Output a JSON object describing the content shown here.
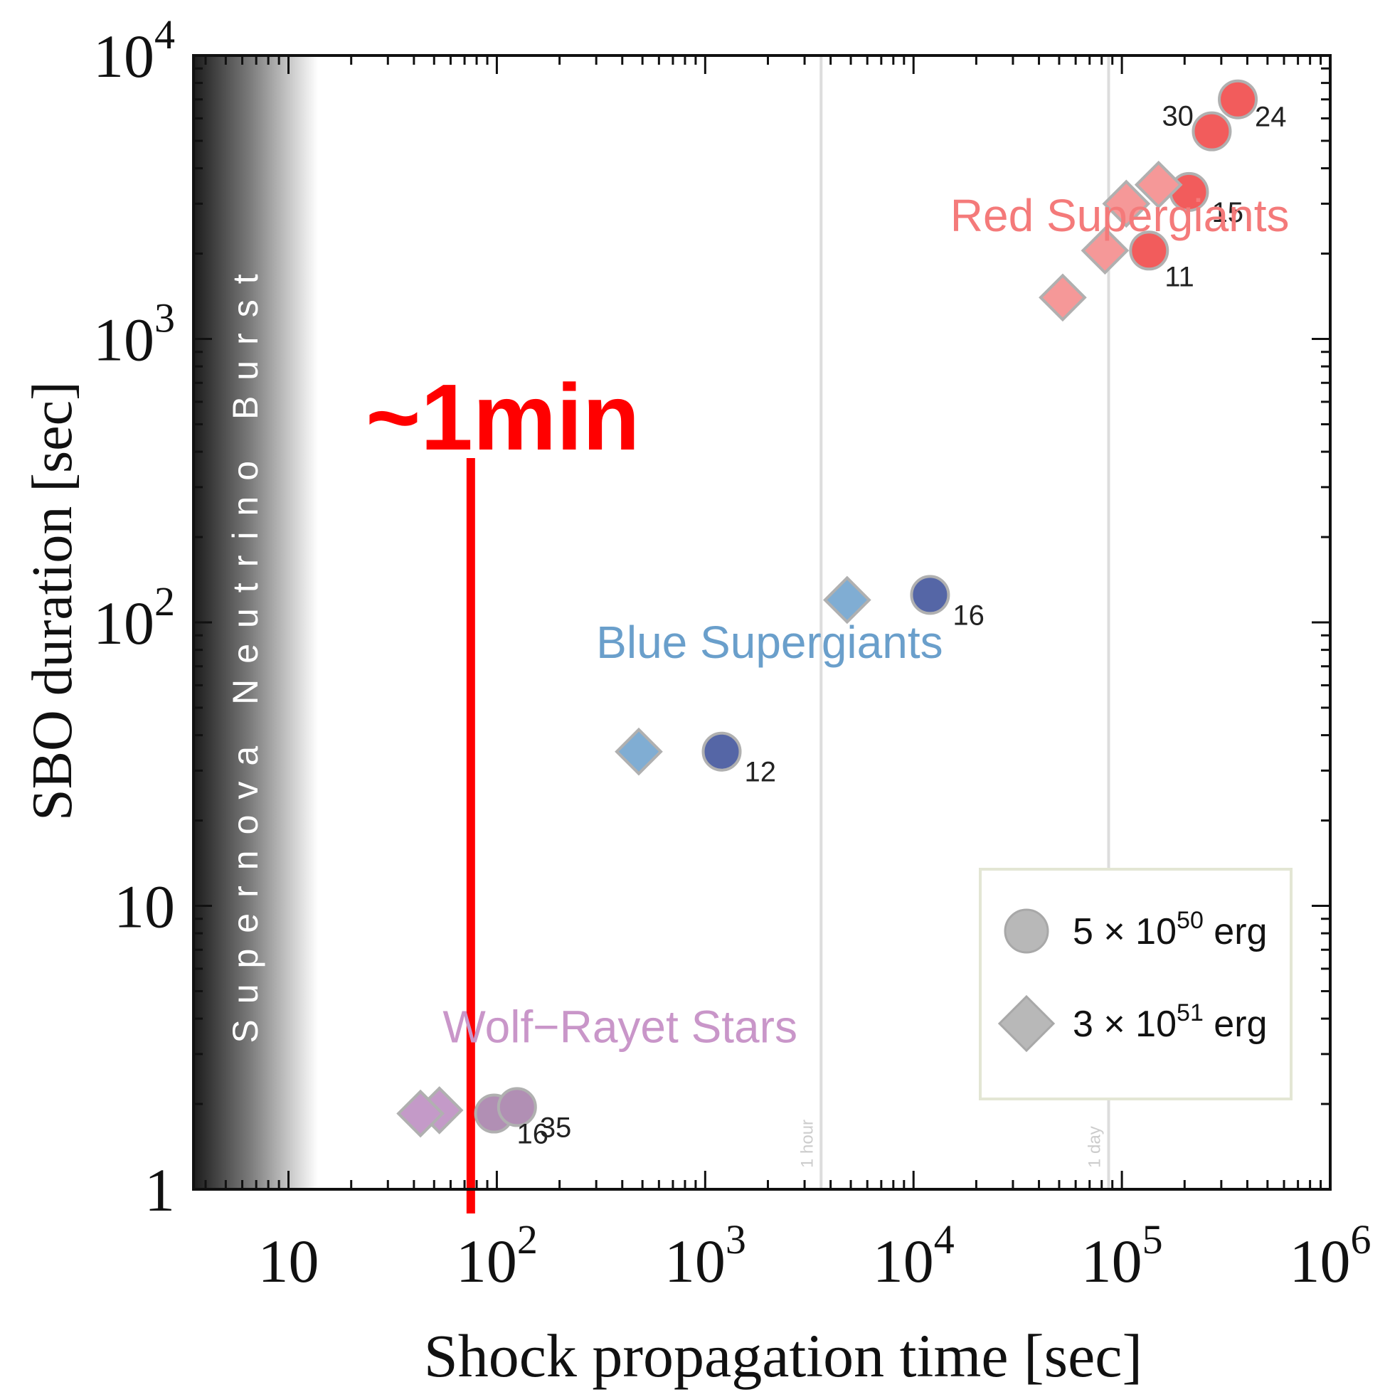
{
  "chart_data": {
    "type": "scatter",
    "xlabel": "Shock propagation time [sec]",
    "ylabel": "SBO duration [sec]",
    "xscale": "log",
    "yscale": "log",
    "xlim": [
      3.5,
      1000000
    ],
    "ylim": [
      1,
      10000
    ],
    "x_ticks": [
      {
        "value": 10,
        "base": "10",
        "exp": ""
      },
      {
        "value": 100,
        "base": "10",
        "exp": "2"
      },
      {
        "value": 1000,
        "base": "10",
        "exp": "3"
      },
      {
        "value": 10000,
        "base": "10",
        "exp": "4"
      },
      {
        "value": 100000,
        "base": "10",
        "exp": "5"
      },
      {
        "value": 1000000,
        "base": "10",
        "exp": "6"
      }
    ],
    "y_ticks": [
      {
        "value": 1,
        "base": "1",
        "exp": ""
      },
      {
        "value": 10,
        "base": "10",
        "exp": ""
      },
      {
        "value": 100,
        "base": "10",
        "exp": "2"
      },
      {
        "value": 1000,
        "base": "10",
        "exp": "3"
      },
      {
        "value": 10000,
        "base": "10",
        "exp": "4"
      }
    ],
    "grid": false,
    "band_label": "Supernova Neutrino Burst",
    "time_markers": [
      {
        "label": "1 hour",
        "x": 3600
      },
      {
        "label": "1 day",
        "x": 86400
      }
    ],
    "groups": [
      {
        "name": "Red Supergiants",
        "color": "#f47a7a",
        "label_x": 15000,
        "label_y": 2400
      },
      {
        "name": "Blue Supergiants",
        "color": "#6a9fcb",
        "label_x": 300,
        "label_y": 75
      },
      {
        "name": "Wolf−Rayet Stars",
        "color": "#c996c9",
        "label_x": 55,
        "label_y": 3.3
      }
    ],
    "series": [
      {
        "name": "5 × 10^50 erg",
        "marker": "circle",
        "points": [
          {
            "x": 360000,
            "y": 7000,
            "group": "red",
            "label": "24",
            "color": "#f25c5c"
          },
          {
            "x": 270000,
            "y": 5400,
            "group": "red",
            "label": "30",
            "color": "#f25c5c"
          },
          {
            "x": 210000,
            "y": 3300,
            "group": "red",
            "label": "15",
            "color": "#f25c5c"
          },
          {
            "x": 135000,
            "y": 2050,
            "group": "red",
            "label": "11",
            "color": "#f25c5c"
          },
          {
            "x": 12000,
            "y": 125,
            "group": "blue",
            "label": "16",
            "color": "#5566a6"
          },
          {
            "x": 1200,
            "y": 35,
            "group": "blue",
            "label": "12",
            "color": "#5566a6"
          },
          {
            "x": 97,
            "y": 1.85,
            "group": "wr",
            "label": "16",
            "color": "#b18fb4"
          },
          {
            "x": 125,
            "y": 1.95,
            "group": "wr",
            "label": "35",
            "color": "#b18fb4"
          }
        ]
      },
      {
        "name": "3 × 10^51 erg",
        "marker": "diamond",
        "points": [
          {
            "x": 150000,
            "y": 3500,
            "group": "red",
            "color": "#f59898"
          },
          {
            "x": 105000,
            "y": 3000,
            "group": "red",
            "color": "#f59898"
          },
          {
            "x": 83000,
            "y": 2050,
            "group": "red",
            "color": "#f59898"
          },
          {
            "x": 52000,
            "y": 1400,
            "group": "red",
            "color": "#f59898"
          },
          {
            "x": 4800,
            "y": 120,
            "group": "blue",
            "color": "#80add3"
          },
          {
            "x": 480,
            "y": 35,
            "group": "blue",
            "color": "#80add3"
          },
          {
            "x": 53,
            "y": 1.9,
            "group": "wr",
            "color": "#c49ac8"
          },
          {
            "x": 43,
            "y": 1.85,
            "group": "wr",
            "color": "#c49ac8"
          }
        ]
      }
    ],
    "legend": {
      "placement": "bottom-right",
      "entries": [
        {
          "marker": "circle",
          "mantissa": "5 × 10",
          "exp": "50",
          "unit": "erg"
        },
        {
          "marker": "diamond",
          "mantissa": "3 × 10",
          "exp": "51",
          "unit": "erg"
        }
      ]
    },
    "annotation": {
      "text": "~1min",
      "x": 75,
      "y_top": 380,
      "y_bottom": 1,
      "color": "#ff0000"
    }
  }
}
